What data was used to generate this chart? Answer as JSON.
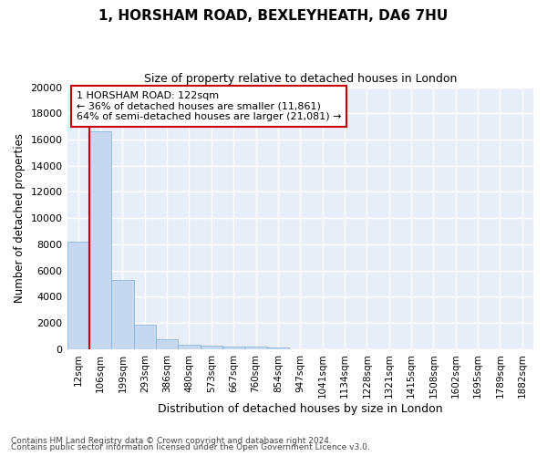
{
  "title_line1": "1, HORSHAM ROAD, BEXLEYHEATH, DA6 7HU",
  "title_line2": "Size of property relative to detached houses in London",
  "xlabel": "Distribution of detached houses by size in London",
  "ylabel": "Number of detached properties",
  "annotation_line1": "1 HORSHAM ROAD: 122sqm",
  "annotation_line2": "← 36% of detached houses are smaller (11,861)",
  "annotation_line3": "64% of semi-detached houses are larger (21,081) →",
  "footer_line1": "Contains HM Land Registry data © Crown copyright and database right 2024.",
  "footer_line2": "Contains public sector information licensed under the Open Government Licence v3.0.",
  "bar_color": "#c5d8ef",
  "bar_edge_color": "#7bafd4",
  "red_line_color": "#cc0000",
  "annotation_box_color": "#cc0000",
  "background_color": "#e8eef7",
  "grid_color": "#ffffff",
  "categories": [
    "12sqm",
    "106sqm",
    "199sqm",
    "293sqm",
    "386sqm",
    "480sqm",
    "573sqm",
    "667sqm",
    "760sqm",
    "854sqm",
    "947sqm",
    "1041sqm",
    "1134sqm",
    "1228sqm",
    "1321sqm",
    "1415sqm",
    "1508sqm",
    "1602sqm",
    "1695sqm",
    "1789sqm",
    "1882sqm"
  ],
  "values": [
    8200,
    16600,
    5300,
    1850,
    750,
    370,
    270,
    200,
    175,
    150,
    0,
    0,
    0,
    0,
    0,
    0,
    0,
    0,
    0,
    0,
    0
  ],
  "ylim": [
    0,
    20000
  ],
  "yticks": [
    0,
    2000,
    4000,
    6000,
    8000,
    10000,
    12000,
    14000,
    16000,
    18000,
    20000
  ],
  "red_line_x": 0.5
}
